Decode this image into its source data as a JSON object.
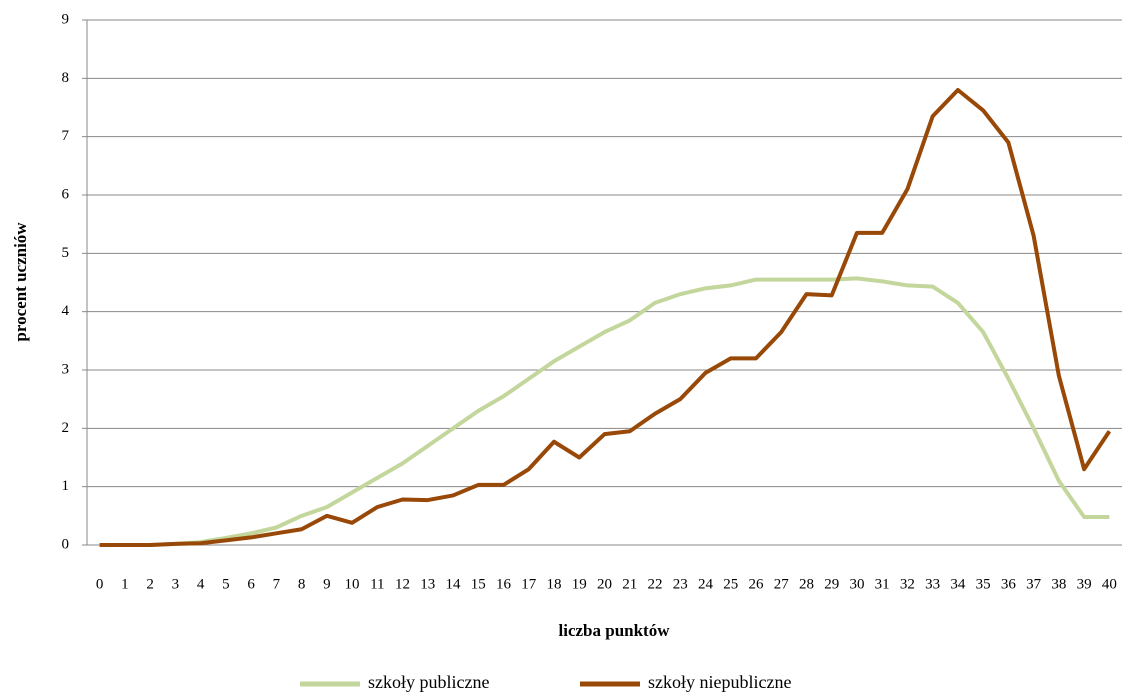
{
  "chart_data": {
    "type": "line",
    "x_label": "liczba punktów",
    "y_label": "procent uczniów",
    "categories": [
      "0",
      "1",
      "2",
      "3",
      "4",
      "5",
      "6",
      "7",
      "8",
      "9",
      "10",
      "11",
      "12",
      "13",
      "14",
      "15",
      "16",
      "17",
      "18",
      "19",
      "20",
      "21",
      "22",
      "23",
      "24",
      "25",
      "26",
      "27",
      "28",
      "29",
      "30",
      "31",
      "32",
      "33",
      "34",
      "35",
      "36",
      "37",
      "38",
      "39",
      "40"
    ],
    "series": [
      {
        "name": "szkoły publiczne",
        "color": "#c3d69b",
        "values": [
          0,
          0,
          0,
          0.02,
          0.05,
          0.12,
          0.2,
          0.3,
          0.5,
          0.65,
          0.9,
          1.15,
          1.4,
          1.7,
          2.0,
          2.3,
          2.55,
          2.85,
          3.15,
          3.4,
          3.65,
          3.85,
          4.15,
          4.3,
          4.4,
          4.45,
          4.55,
          4.55,
          4.55,
          4.55,
          4.57,
          4.52,
          4.45,
          4.43,
          4.15,
          3.65,
          2.85,
          2.0,
          1.1,
          0.48,
          0.48
        ]
      },
      {
        "name": "szkoły niepubliczne",
        "color": "#984807",
        "values": [
          0,
          0,
          0,
          0.02,
          0.03,
          0.08,
          0.13,
          0.2,
          0.27,
          0.5,
          0.38,
          0.65,
          0.78,
          0.77,
          0.85,
          1.03,
          1.03,
          1.3,
          1.77,
          1.5,
          1.9,
          1.95,
          2.25,
          2.5,
          2.95,
          3.2,
          3.2,
          3.65,
          4.3,
          4.28,
          5.35,
          5.35,
          6.1,
          7.35,
          7.8,
          7.45,
          6.9,
          5.3,
          2.9,
          1.3,
          1.95
        ]
      }
    ],
    "ylim": [
      0,
      9
    ],
    "yticks": [
      0,
      1,
      2,
      3,
      4,
      5,
      6,
      7,
      8,
      9
    ],
    "grid": true,
    "legend": "bottom"
  }
}
